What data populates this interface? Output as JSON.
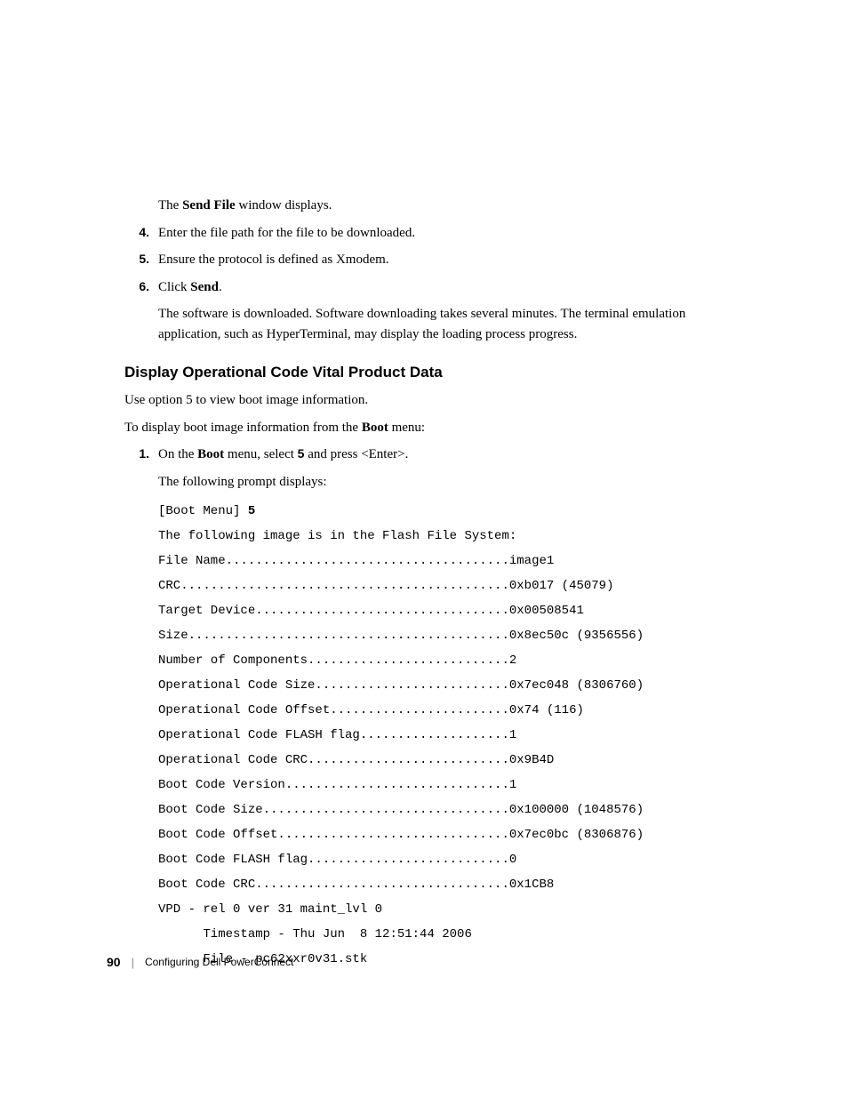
{
  "intro_text": {
    "send_file_window": [
      "The ",
      "Send File",
      " window displays."
    ]
  },
  "steps_a": [
    {
      "num": "4.",
      "text": "Enter the file path for the file to be downloaded."
    },
    {
      "num": "5.",
      "text": "Ensure the protocol is defined as Xmodem."
    },
    {
      "num": "6.",
      "text_parts": [
        "Click ",
        "Send",
        "."
      ]
    }
  ],
  "post_step_text": "The software is downloaded. Software downloading takes several minutes. The terminal emulation application, such as HyperTerminal, may display the loading process progress.",
  "section_heading": "Display Operational Code Vital Product Data",
  "body_1": "Use option 5 to view boot image information.",
  "body_2_parts": [
    "To display boot image information from the ",
    "Boot",
    " menu:"
  ],
  "steps_b": {
    "num": "1.",
    "parts": [
      "On the ",
      "Boot",
      " menu, select ",
      "5",
      " and press <Enter>."
    ]
  },
  "prompt_text": "The following prompt displays:",
  "code_lines": [
    {
      "prefix": "[Boot Menu] ",
      "bold": "5"
    },
    {
      "text": "The following image is in the Flash File System:"
    },
    {
      "text": "File Name......................................image1"
    },
    {
      "text": "CRC............................................0xb017 (45079)"
    },
    {
      "text": "Target Device..................................0x00508541"
    },
    {
      "text": "Size...........................................0x8ec50c (9356556)"
    },
    {
      "text": "Number of Components...........................2"
    },
    {
      "text": "Operational Code Size..........................0x7ec048 (8306760)"
    },
    {
      "text": "Operational Code Offset........................0x74 (116)"
    },
    {
      "text": "Operational Code FLASH flag....................1"
    },
    {
      "text": "Operational Code CRC...........................0x9B4D"
    },
    {
      "text": "Boot Code Version..............................1"
    },
    {
      "text": "Boot Code Size.................................0x100000 (1048576)"
    },
    {
      "text": "Boot Code Offset...............................0x7ec0bc (8306876)"
    },
    {
      "text": "Boot Code FLASH flag...........................0"
    },
    {
      "text": "Boot Code CRC..................................0x1CB8"
    },
    {
      "text": "VPD - rel 0 ver 31 maint_lvl 0"
    },
    {
      "text": "      Timestamp - Thu Jun  8 12:51:44 2006"
    },
    {
      "text": "      File - pc62xxr0v31.stk"
    }
  ],
  "footer": {
    "page_num": "90",
    "divider": "|",
    "text": "Configuring Dell PowerConnect"
  }
}
